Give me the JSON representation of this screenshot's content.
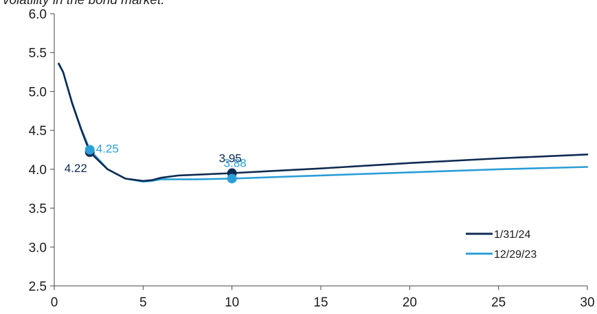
{
  "caption": "volatility in the bond market.",
  "chart_data": {
    "type": "line",
    "xlim": [
      0,
      30
    ],
    "ylim": [
      2.5,
      6.0
    ],
    "x_ticks": [
      "0",
      "5",
      "10",
      "15",
      "20",
      "25",
      "30"
    ],
    "y_ticks": [
      "2.5",
      "3.0",
      "3.5",
      "4.0",
      "4.5",
      "5.0",
      "5.5",
      "6.0"
    ],
    "grid": false,
    "legend_position": "bottom-right",
    "series": [
      {
        "name": "1/31/24",
        "color": "#0e2a52",
        "x": [
          0.25,
          0.5,
          1,
          1.5,
          2,
          3,
          4,
          5,
          5.5,
          6,
          7,
          8,
          10,
          15,
          20,
          25,
          30
        ],
        "y": [
          5.36,
          5.25,
          4.85,
          4.52,
          4.22,
          4.0,
          3.88,
          3.85,
          3.86,
          3.89,
          3.92,
          3.93,
          3.95,
          4.01,
          4.08,
          4.14,
          4.19
        ]
      },
      {
        "name": "12/29/23",
        "color": "#2a9ed6",
        "x": [
          0.25,
          0.5,
          1,
          1.5,
          2,
          3,
          4,
          5,
          5.5,
          6,
          7,
          8,
          10,
          15,
          20,
          25,
          30
        ],
        "y": [
          5.35,
          5.25,
          4.86,
          4.53,
          4.25,
          4.0,
          3.88,
          3.84,
          3.85,
          3.87,
          3.87,
          3.87,
          3.88,
          3.92,
          3.96,
          4.0,
          4.03
        ]
      }
    ],
    "markers": [
      {
        "series": 0,
        "x": 2,
        "y": 4.22,
        "label": "4.22"
      },
      {
        "series": 1,
        "x": 2,
        "y": 4.25,
        "label": "4.25"
      },
      {
        "series": 0,
        "x": 10,
        "y": 3.95,
        "label": "3.95"
      },
      {
        "series": 1,
        "x": 10,
        "y": 3.88,
        "label": "3.88"
      }
    ]
  }
}
